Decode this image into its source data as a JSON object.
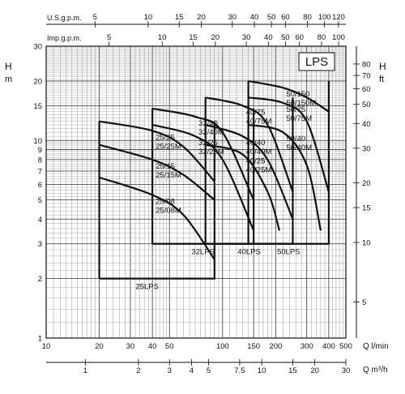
{
  "chart_data": {
    "type": "line",
    "title": "LPS",
    "scale": "log-log",
    "grid": true,
    "x_axis": {
      "label": "Q l/min",
      "range": [
        10,
        500
      ],
      "ticks": [
        "10",
        "20",
        "30",
        "40",
        "50",
        "100",
        "150",
        "200",
        "300",
        "400",
        "500"
      ]
    },
    "x_axis_m3h": {
      "label": "Q m³/h",
      "ticks": [
        {
          "value": 1,
          "label": "1"
        },
        {
          "value": 2,
          "label": "2"
        },
        {
          "value": 3,
          "label": "3"
        },
        {
          "value": 4,
          "label": "4"
        },
        {
          "value": 5,
          "label": "5"
        },
        {
          "value": 7.5,
          "label": "7.5"
        },
        {
          "value": 10,
          "label": "10"
        },
        {
          "value": 15,
          "label": "15"
        },
        {
          "value": 20,
          "label": "20"
        },
        {
          "value": 30,
          "label": "30"
        }
      ]
    },
    "x_axis_usgpm": {
      "label": "U.S.g.p.m.",
      "ticks": [
        {
          "value": 5,
          "label": "5"
        },
        {
          "value": 10,
          "label": "10"
        },
        {
          "value": 15,
          "label": "15"
        },
        {
          "value": 20,
          "label": "20"
        },
        {
          "value": 30,
          "label": "30"
        },
        {
          "value": 40,
          "label": "40"
        },
        {
          "value": 50,
          "label": "50"
        },
        {
          "value": 60,
          "label": "60"
        },
        {
          "value": 80,
          "label": "80"
        },
        {
          "value": 100,
          "label": "100"
        },
        {
          "value": 120,
          "label": "120"
        }
      ]
    },
    "x_axis_impgpm": {
      "label": "Imp.g.p.m.",
      "ticks": [
        {
          "value": 5,
          "label": "5"
        },
        {
          "value": 10,
          "label": "10"
        },
        {
          "value": 15,
          "label": "15"
        },
        {
          "value": 20,
          "label": "20"
        },
        {
          "value": 30,
          "label": "30"
        },
        {
          "value": 40,
          "label": "40"
        },
        {
          "value": 50,
          "label": "50"
        },
        {
          "value": 60,
          "label": "60"
        },
        {
          "value": 80,
          "label": "80"
        },
        {
          "value": 100,
          "label": "100"
        }
      ]
    },
    "y_axis": {
      "label_1": "H",
      "label_2": "m",
      "range": [
        1,
        30
      ],
      "ticks": [
        "1",
        "2",
        "3",
        "4",
        "5",
        "6",
        "7",
        "8",
        "9",
        "10",
        "15",
        "20",
        "30"
      ]
    },
    "y_axis_ft": {
      "label_1": "H",
      "label_2": "ft",
      "ticks": [
        {
          "value": 5,
          "label": "5"
        },
        {
          "value": 10,
          "label": "10"
        },
        {
          "value": 15,
          "label": "15"
        },
        {
          "value": 20,
          "label": "20"
        },
        {
          "value": 30,
          "label": "30"
        },
        {
          "value": 40,
          "label": "40"
        },
        {
          "value": 50,
          "label": "50"
        },
        {
          "value": 60,
          "label": "60"
        },
        {
          "value": 70,
          "label": "70"
        },
        {
          "value": 80,
          "label": "80"
        }
      ]
    },
    "families": [
      {
        "name": "25LPS",
        "q_range": [
          20,
          90
        ],
        "h_range": [
          2,
          12.5
        ]
      },
      {
        "name": "32LPS",
        "q_range": [
          40,
          150
        ],
        "h_range": [
          3,
          14.5
        ]
      },
      {
        "name": "40LPS",
        "q_range": [
          80,
          250
        ],
        "h_range": [
          3,
          16.5
        ]
      },
      {
        "name": "50LPS",
        "q_range": [
          140,
          400
        ],
        "h_range": [
          3,
          20
        ]
      }
    ],
    "series": [
      {
        "name": "25/25",
        "name_2": "25/25M",
        "x": [
          20,
          40,
          60,
          90
        ],
        "y": [
          12.5,
          11.2,
          9.3,
          6.2
        ]
      },
      {
        "name": "25/15",
        "name_2": "25/15M",
        "x": [
          20,
          40,
          60,
          90
        ],
        "y": [
          9.5,
          8.0,
          6.7,
          5.0
        ]
      },
      {
        "name": "25/08",
        "name_2": "25/08M",
        "x": [
          20,
          40,
          60,
          90
        ],
        "y": [
          6.5,
          5.3,
          4.2,
          2.5
        ]
      },
      {
        "name": "32/40",
        "name_2": "32/40M",
        "x": [
          40,
          70,
          100,
          150
        ],
        "y": [
          14.5,
          13.2,
          11.0,
          5.0
        ]
      },
      {
        "name": "32/25",
        "name_2": "32/25M",
        "x": [
          40,
          70,
          100,
          150
        ],
        "y": [
          12.0,
          10.5,
          8.0,
          3.5
        ]
      },
      {
        "name": "40/75",
        "name_2": "40/75M",
        "x": [
          80,
          130,
          180,
          250
        ],
        "y": [
          16.5,
          15.0,
          12.0,
          5.5
        ]
      },
      {
        "name": "40/40",
        "name_2": "40/40M",
        "x": [
          80,
          130,
          180,
          250
        ],
        "y": [
          12.0,
          10.5,
          8.0,
          4.0
        ]
      },
      {
        "name": "40/25",
        "name_2": "40/25M",
        "x": [
          80,
          130,
          180,
          210
        ],
        "y": [
          9.5,
          8.5,
          5.5,
          3.5
        ]
      },
      {
        "name": "50/150",
        "name_2": "50/150M",
        "x": [
          140,
          220,
          300,
          400
        ],
        "y": [
          20.0,
          18.5,
          16.5,
          14.0
        ]
      },
      {
        "name": "50/75",
        "name_2": "50/75M",
        "x": [
          140,
          220,
          300,
          400
        ],
        "y": [
          16.5,
          15.5,
          12.5,
          5.5
        ]
      },
      {
        "name": "50/40",
        "name_2": "50/40M",
        "x": [
          140,
          220,
          300,
          360
        ],
        "y": [
          12.0,
          11.0,
          7.5,
          3.5
        ]
      }
    ]
  }
}
